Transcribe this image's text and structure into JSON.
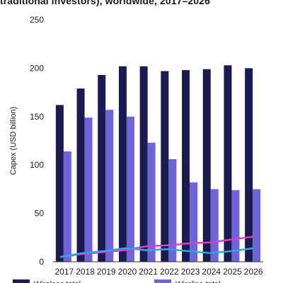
{
  "chart_data": {
    "type": "bar",
    "title": "traditional investors), worldwide, 2017–2026",
    "xlabel": "",
    "ylabel": "Capex (USD billion)",
    "ylim": [
      0,
      250
    ],
    "yticks": [
      0,
      50,
      100,
      150,
      200,
      250
    ],
    "categories": [
      "2017",
      "2018",
      "2019",
      "2020",
      "2021",
      "2022",
      "2023",
      "2024",
      "2025",
      "2026"
    ],
    "series": [
      {
        "name": "Wireless total",
        "kind": "bar",
        "color": "#1c1a52",
        "values": [
          162,
          179,
          193,
          202,
          202,
          197,
          198,
          199,
          203,
          200
        ]
      },
      {
        "name": "Wireline total",
        "kind": "bar",
        "color": "#6e63d8",
        "values": [
          114,
          149,
          157,
          150,
          123,
          106,
          82,
          75,
          74,
          75
        ]
      },
      {
        "name": "",
        "kind": "line",
        "color": "#d83fc8",
        "values": [
          5,
          8,
          10,
          12,
          16,
          17,
          19,
          20,
          23,
          26
        ]
      },
      {
        "name": "",
        "kind": "line",
        "color": "#29a9e8",
        "values": [
          5,
          9,
          11,
          14,
          12,
          13,
          11,
          9,
          11,
          14
        ]
      }
    ],
    "grid": false,
    "legend_position": "bottom"
  }
}
